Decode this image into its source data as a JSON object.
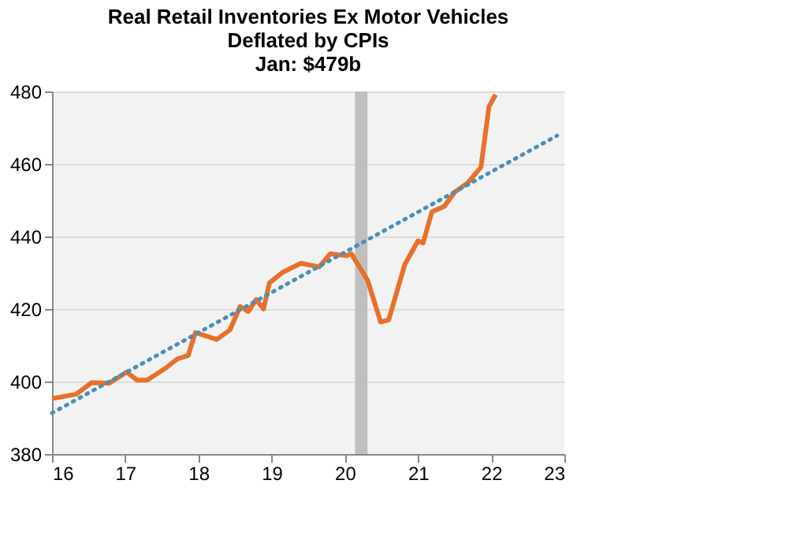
{
  "chart_data": {
    "type": "line",
    "title": [
      "Real Retail Inventories Ex Motor Vehicles",
      "Deflated by CPIs",
      "Jan: $479b"
    ],
    "x": [
      16.0,
      16.33,
      16.54,
      16.78,
      17.02,
      17.16,
      17.3,
      17.56,
      17.71,
      17.86,
      17.96,
      18.25,
      18.43,
      18.57,
      18.68,
      18.79,
      18.89,
      18.97,
      19.15,
      19.4,
      19.65,
      19.8,
      20.02,
      20.09,
      20.31,
      20.49,
      20.6,
      20.82,
      21.0,
      21.07,
      21.19,
      21.36,
      21.5,
      21.68,
      21.86,
      21.97,
      22.06
    ],
    "series": [
      {
        "color": "#e8702a",
        "values": [
          395.3,
          396.5,
          399.7,
          399.5,
          402.6,
          400.4,
          400.4,
          403.8,
          406.2,
          407.2,
          413.5,
          411.6,
          414.2,
          420.7,
          419.3,
          422.6,
          420.0,
          427.2,
          430.1,
          432.6,
          431.6,
          435.2,
          434.7,
          435.2,
          428.0,
          416.4,
          417.0,
          432.3,
          438.8,
          438.2,
          446.8,
          448.3,
          452.2,
          454.8,
          459.1,
          475.8,
          479.1
        ],
        "line_style": "solid"
      },
      {
        "color": "#4a90b8",
        "x": [
          16.0,
          22.9
        ],
        "values": [
          391.3,
          467.8
        ],
        "line_style": "dotted"
      }
    ],
    "xlim": [
      16,
      23
    ],
    "xticks": [
      16,
      17,
      18,
      19,
      20,
      21,
      22,
      23
    ],
    "ylim": [
      380,
      480
    ],
    "yticks": [
      380,
      400,
      420,
      440,
      460,
      480
    ],
    "bands": [
      {
        "axis": "x",
        "from": 20.14,
        "to": 20.31,
        "color": "#bfbfbf"
      }
    ],
    "grid": "y"
  }
}
